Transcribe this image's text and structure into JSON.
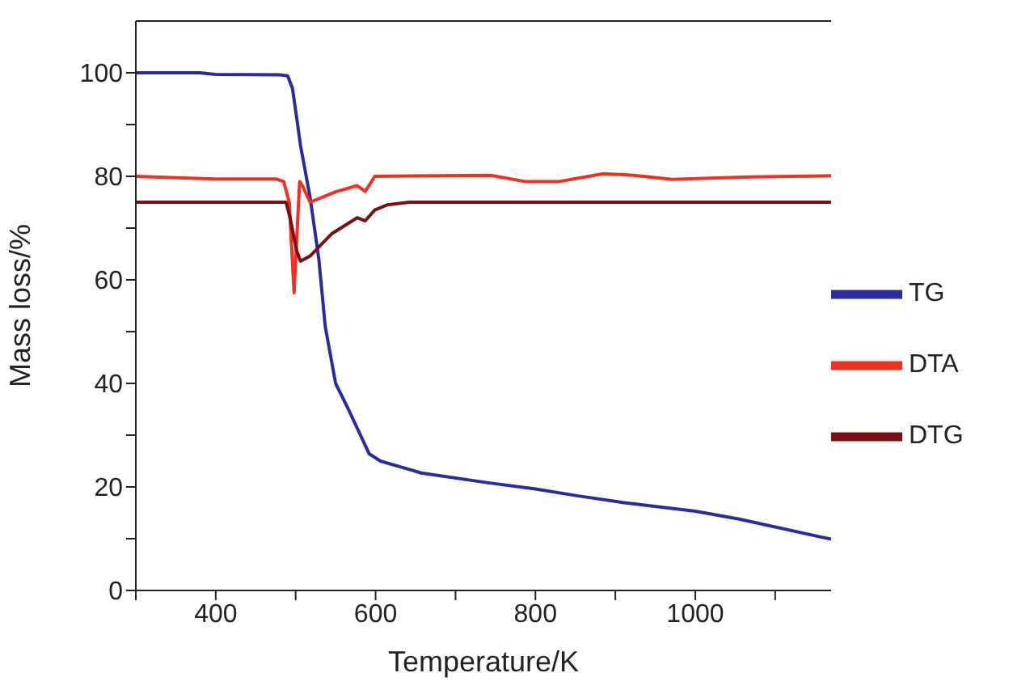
{
  "chart_data": {
    "type": "line",
    "xlabel": "Temperature/K",
    "ylabel": "Mass loss/%",
    "xlim": [
      300,
      1170
    ],
    "ylim": [
      0,
      110
    ],
    "xticks": [
      {
        "value": 300,
        "label": null
      },
      400,
      {
        "value": 500,
        "label": null
      },
      600,
      {
        "value": 700,
        "label": null
      },
      800,
      {
        "value": 900,
        "label": null
      },
      1000,
      {
        "value": 1100,
        "label": null
      }
    ],
    "yticks": [
      0,
      {
        "value": 10,
        "label": null
      },
      20,
      {
        "value": 30,
        "label": null
      },
      40,
      {
        "value": 50,
        "label": null
      },
      60,
      {
        "value": 70,
        "label": null
      },
      80,
      {
        "value": 90,
        "label": null
      },
      100
    ],
    "grid": false,
    "legend": "right",
    "marker": "none",
    "line_style": "solid",
    "series": [
      {
        "name": "TG",
        "color": "#2b2ba0",
        "x": [
          300,
          380,
          400,
          480,
          490,
          496,
          501,
          506,
          518,
          529,
          537,
          550,
          566,
          592,
          606,
          657,
          741,
          800,
          852,
          909,
          1000,
          1055,
          1170
        ],
        "values": [
          100,
          100,
          99.7,
          99.6,
          99.4,
          97,
          91.6,
          86,
          76,
          64,
          51,
          40,
          35,
          26.4,
          25,
          22.7,
          20.8,
          19.6,
          18.3,
          17,
          15.3,
          13.8,
          9.9
        ]
      },
      {
        "name": "DTA",
        "color": "#f03020",
        "x": [
          300,
          399,
          475,
          485,
          492,
          498,
          502,
          505,
          508,
          518,
          550,
          577,
          587,
          599,
          744,
          787,
          830,
          885,
          923,
          971,
          1068,
          1170
        ],
        "values": [
          80,
          79.5,
          79.5,
          79,
          75,
          57.5,
          70,
          79,
          78.3,
          75,
          77,
          78.2,
          77.1,
          80,
          80.2,
          79,
          79,
          80.5,
          80.2,
          79.4,
          79.9,
          80.1
        ]
      },
      {
        "name": "DTG",
        "color": "#7a1010",
        "x": [
          300,
          488,
          493,
          501,
          506,
          518,
          545,
          577,
          587,
          599,
          615,
          642,
          1170
        ],
        "values": [
          75,
          75,
          72,
          65.8,
          63.6,
          64.6,
          68.9,
          72,
          71.4,
          73.5,
          74.5,
          75,
          75
        ]
      }
    ]
  }
}
